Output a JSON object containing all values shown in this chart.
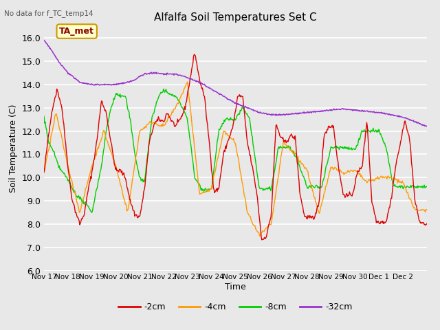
{
  "title": "Alfalfa Soil Temperatures Set C",
  "xlabel": "Time",
  "ylabel": "Soil Temperature (C)",
  "note": "No data for f_TC_temp14",
  "legend_label": "TA_met",
  "ylim": [
    6.0,
    16.5
  ],
  "xlim": [
    0,
    16
  ],
  "bg_color": "#e8e8e8",
  "plot_bg_color": "#e8e8e8",
  "line_colors": {
    "2cm": "#dd0000",
    "4cm": "#ff9900",
    "8cm": "#00cc00",
    "32cm": "#9933cc"
  },
  "legend_entries": [
    "-2cm",
    "-4cm",
    "-8cm",
    "-32cm"
  ],
  "xtick_labels": [
    "Nov 17",
    "Nov 18",
    "Nov 19",
    "Nov 20",
    "Nov 21",
    "Nov 22",
    "Nov 23",
    "Nov 24",
    "Nov 25",
    "Nov 26",
    "Nov 27",
    "Nov 28",
    "Nov 29",
    "Nov 30",
    "Dec 1",
    "Dec 2"
  ],
  "ytick_labels": [
    "6.0",
    "7.0",
    "8.0",
    "9.0",
    "10.0",
    "11.0",
    "12.0",
    "13.0",
    "14.0",
    "15.0",
    "16.0"
  ],
  "figsize": [
    6.4,
    4.8
  ],
  "dpi": 100,
  "red_t": [
    0.0,
    0.15,
    0.35,
    0.55,
    0.75,
    0.9,
    1.0,
    1.15,
    1.3,
    1.5,
    1.7,
    1.85,
    2.0,
    2.2,
    2.4,
    2.6,
    2.8,
    3.0,
    3.2,
    3.4,
    3.6,
    3.8,
    4.0,
    4.2,
    4.4,
    4.6,
    4.8,
    5.0,
    5.15,
    5.3,
    5.5,
    5.7,
    5.9,
    6.1,
    6.3,
    6.5,
    6.7,
    6.9,
    7.1,
    7.3,
    7.5,
    7.7,
    7.9,
    8.1,
    8.3,
    8.5,
    8.7,
    8.9,
    9.1,
    9.3,
    9.5,
    9.7,
    9.9,
    10.1,
    10.3,
    10.5,
    10.7,
    10.9,
    11.1,
    11.3,
    11.5,
    11.7,
    11.9,
    12.1,
    12.3,
    12.5,
    12.7,
    12.9,
    13.1,
    13.3,
    13.5,
    13.7,
    13.9,
    14.1,
    14.3,
    14.5,
    14.7,
    14.9,
    15.1,
    15.3,
    15.5,
    15.7,
    15.9,
    16.0
  ],
  "red_y": [
    10.2,
    11.5,
    13.0,
    13.8,
    13.0,
    11.5,
    10.5,
    9.2,
    8.6,
    8.0,
    8.5,
    9.5,
    10.2,
    11.5,
    13.3,
    12.8,
    11.5,
    10.3,
    10.3,
    10.0,
    9.0,
    8.4,
    8.3,
    9.5,
    11.5,
    12.3,
    12.5,
    12.4,
    12.8,
    12.5,
    12.2,
    12.5,
    13.0,
    14.2,
    15.4,
    14.2,
    13.5,
    11.6,
    9.4,
    9.5,
    11.0,
    11.6,
    12.2,
    13.5,
    13.5,
    11.5,
    10.5,
    9.3,
    7.3,
    7.5,
    8.4,
    12.3,
    11.7,
    11.5,
    11.8,
    11.7,
    9.3,
    8.3,
    8.3,
    8.2,
    9.0,
    11.8,
    12.2,
    12.2,
    10.5,
    9.3,
    9.2,
    9.3,
    10.2,
    10.5,
    12.5,
    9.0,
    8.1,
    8.1,
    8.1,
    9.0,
    10.5,
    11.5,
    12.5,
    11.5,
    9.0,
    8.1,
    8.0,
    8.0
  ],
  "orange_t": [
    0.0,
    0.5,
    1.0,
    1.5,
    2.0,
    2.5,
    3.0,
    3.5,
    4.0,
    4.5,
    5.0,
    5.5,
    6.0,
    6.5,
    7.0,
    7.5,
    8.0,
    8.5,
    9.0,
    9.5,
    10.0,
    10.5,
    11.0,
    11.5,
    12.0,
    12.5,
    13.0,
    13.5,
    14.0,
    14.5,
    15.0,
    15.5,
    16.0
  ],
  "orange_y": [
    10.2,
    12.8,
    10.5,
    8.5,
    10.5,
    12.0,
    10.5,
    8.5,
    12.0,
    12.4,
    12.2,
    13.0,
    14.1,
    9.3,
    9.5,
    12.0,
    11.5,
    8.5,
    7.5,
    8.0,
    11.5,
    11.0,
    10.3,
    8.4,
    10.5,
    10.2,
    10.3,
    9.8,
    10.0,
    10.0,
    9.8,
    8.6,
    8.6
  ],
  "green_t": [
    0.0,
    0.2,
    0.4,
    0.6,
    0.8,
    1.0,
    1.2,
    1.4,
    1.6,
    1.8,
    2.0,
    2.2,
    2.4,
    2.6,
    2.8,
    3.0,
    3.2,
    3.4,
    3.6,
    3.8,
    4.0,
    4.2,
    4.5,
    4.8,
    5.0,
    5.2,
    5.5,
    5.8,
    6.0,
    6.3,
    6.6,
    7.0,
    7.3,
    7.6,
    8.0,
    8.3,
    8.6,
    9.0,
    9.3,
    9.5,
    9.8,
    10.0,
    10.3,
    10.6,
    11.0,
    11.3,
    11.6,
    12.0,
    12.3,
    12.6,
    13.0,
    13.3,
    13.6,
    14.0,
    14.3,
    14.6,
    15.0,
    15.3,
    15.6,
    16.0
  ],
  "green_y": [
    12.6,
    11.5,
    11.1,
    10.5,
    10.2,
    9.9,
    9.5,
    9.2,
    9.0,
    8.8,
    8.5,
    9.5,
    10.5,
    12.0,
    13.0,
    13.6,
    13.5,
    13.5,
    12.5,
    11.0,
    10.0,
    9.8,
    12.5,
    13.5,
    13.8,
    13.6,
    13.5,
    13.0,
    12.5,
    10.0,
    9.5,
    9.5,
    12.0,
    12.5,
    12.5,
    13.0,
    12.5,
    9.5,
    9.5,
    9.5,
    11.3,
    11.3,
    11.3,
    10.7,
    9.6,
    9.6,
    9.6,
    11.3,
    11.3,
    11.3,
    11.2,
    12.0,
    12.0,
    12.0,
    11.3,
    9.6,
    9.6,
    9.6,
    9.6,
    9.6
  ],
  "purple_t": [
    0.0,
    0.3,
    0.6,
    1.0,
    1.5,
    2.0,
    2.5,
    3.0,
    3.5,
    3.8,
    4.0,
    4.2,
    4.5,
    4.8,
    5.0,
    5.5,
    6.0,
    6.5,
    7.0,
    7.5,
    8.0,
    8.5,
    9.0,
    9.5,
    10.0,
    10.5,
    11.0,
    11.5,
    12.0,
    12.5,
    13.0,
    13.5,
    14.0,
    14.5,
    15.0,
    15.5,
    16.0
  ],
  "purple_y": [
    15.9,
    15.5,
    15.0,
    14.5,
    14.1,
    14.0,
    14.0,
    14.0,
    14.1,
    14.2,
    14.35,
    14.45,
    14.5,
    14.48,
    14.45,
    14.45,
    14.3,
    14.1,
    13.8,
    13.5,
    13.2,
    13.0,
    12.8,
    12.7,
    12.7,
    12.75,
    12.8,
    12.85,
    12.9,
    12.95,
    12.9,
    12.85,
    12.8,
    12.7,
    12.6,
    12.4,
    12.2
  ]
}
